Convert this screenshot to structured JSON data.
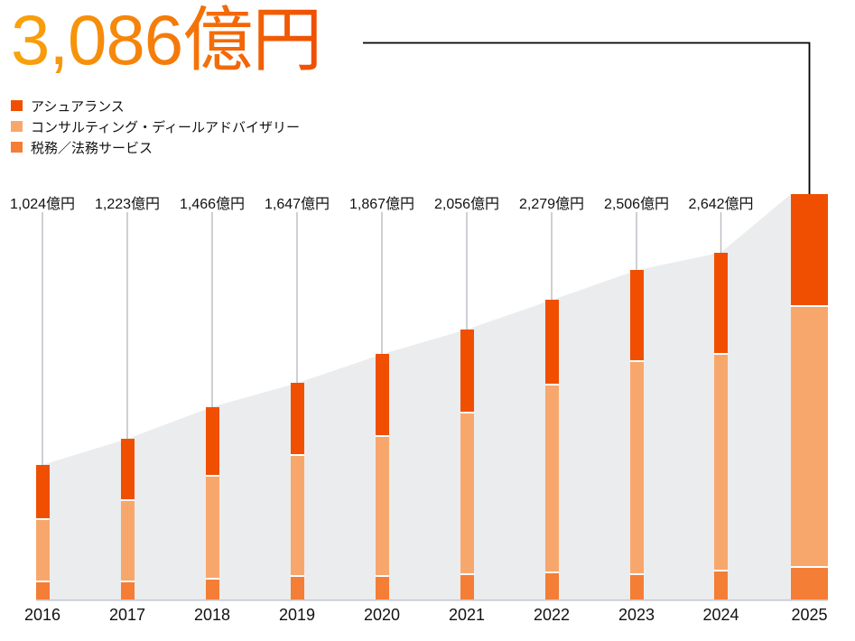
{
  "headline": {
    "value": "3,086億円"
  },
  "legend": {
    "items": [
      {
        "label": "アシュアランス",
        "color": "#F04F02"
      },
      {
        "label": "コンサルティング・ディールアドバイザリー",
        "color": "#F8A76C"
      },
      {
        "label": "税務／法務サービス",
        "color": "#F47E35"
      }
    ]
  },
  "chart_data": {
    "type": "bar",
    "subtype": "stacked-bars-with-gray-area-silhouette",
    "unit": "億円",
    "categories": [
      "2016",
      "2017",
      "2018",
      "2019",
      "2020",
      "2021",
      "2022",
      "2023",
      "2024",
      "2025"
    ],
    "totals": [
      1024,
      1223,
      1466,
      1647,
      1867,
      2056,
      2279,
      2506,
      2642,
      3086
    ],
    "total_labels": [
      "1,024億円",
      "1,223億円",
      "1,466億円",
      "1,647億円",
      "1,867億円",
      "2,056億円",
      "2,279億円",
      "2,506億円",
      "2,642億円"
    ],
    "highlight_category": "2025",
    "highlight_label": "3,086億円",
    "stack_order": "bottom_to_top",
    "series": [
      {
        "name": "税務／法務サービス",
        "color": "#F47E35",
        "values": [
          144,
          145,
          166,
          186,
          186,
          199,
          213,
          199,
          227,
          254
        ]
      },
      {
        "name": "コンサルティング・ディールアドバイザリー",
        "color": "#F8A76C",
        "values": [
          475,
          620,
          785,
          919,
          1064,
          1231,
          1428,
          1621,
          1651,
          1986
        ]
      },
      {
        "name": "アシュアランス",
        "color": "#F04F02",
        "values": [
          405,
          458,
          515,
          542,
          617,
          626,
          638,
          686,
          764,
          846
        ]
      }
    ],
    "ylim": [
      0,
      3086
    ],
    "grid": false,
    "legend_position": "top-left",
    "colors": {
      "area_silhouette": "#EBECEE",
      "axis_line": "#C8CAD2",
      "leader_line": "#B9BBC2",
      "connector_line": "#000000",
      "title_gradient": [
        "#F9A40B",
        "#EF4E02"
      ]
    }
  }
}
